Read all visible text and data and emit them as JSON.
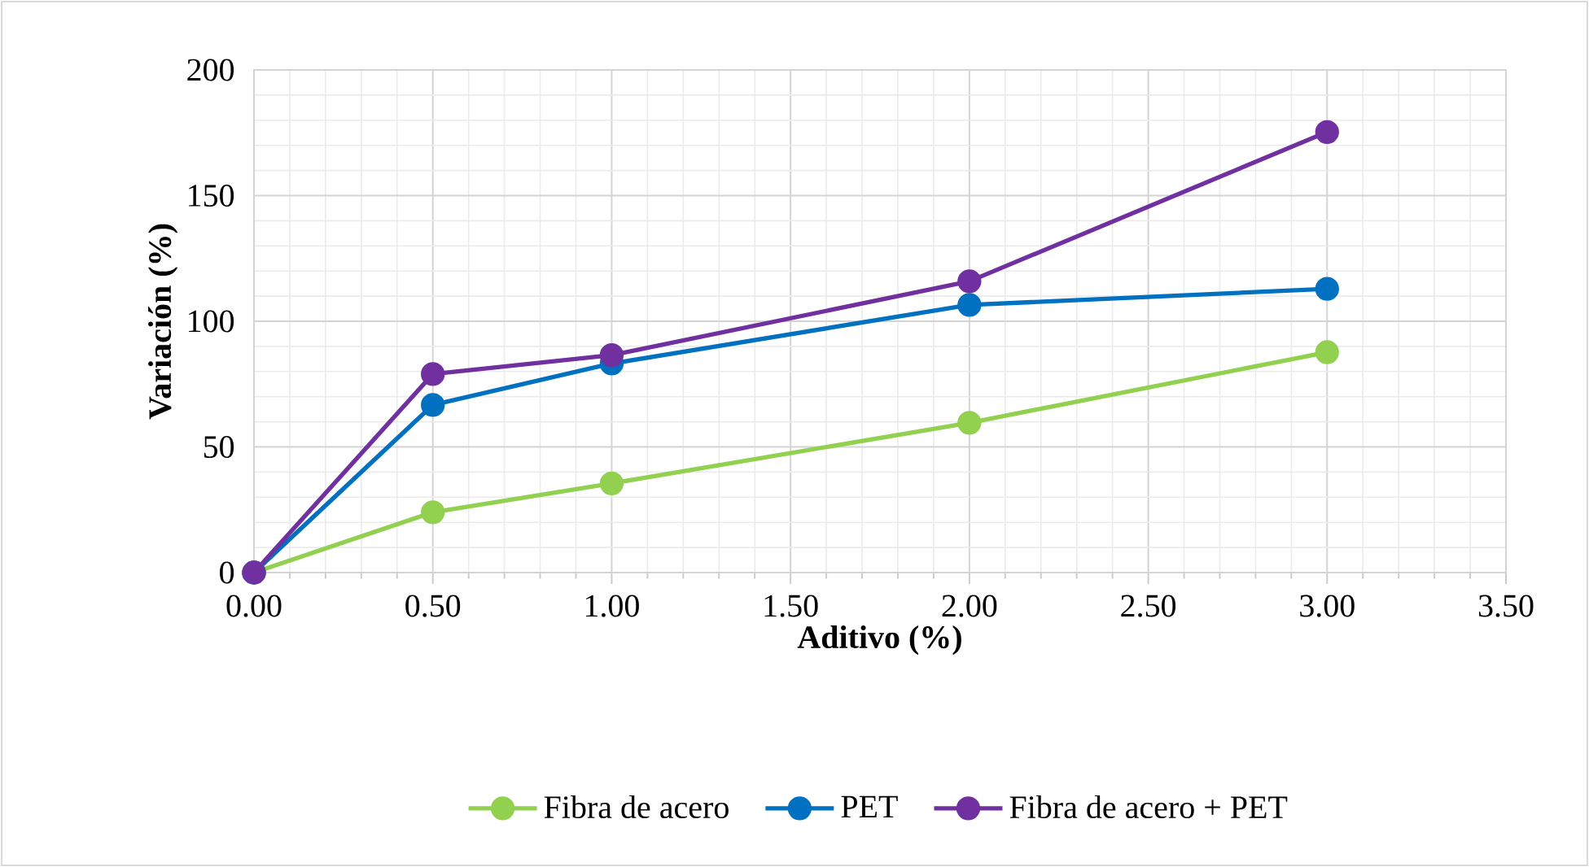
{
  "chart_data": {
    "type": "line",
    "xlabel": "Aditivo (%)",
    "ylabel": "Variación (%)",
    "x": [
      0,
      0.5,
      1,
      2,
      3
    ],
    "series": [
      {
        "name": "Fibra de acero",
        "color": "#92d050",
        "values": [
          0,
          24,
          35.5,
          59.6,
          87.7
        ]
      },
      {
        "name": "PET",
        "color": "#0070c0",
        "values": [
          0,
          66.7,
          83.2,
          106.5,
          112.9
        ]
      },
      {
        "name": "Fibra de acero + PET",
        "color": "#7030a0",
        "values": [
          0,
          79,
          86.5,
          115.9,
          175.3
        ]
      }
    ],
    "xlim": [
      0,
      3.5
    ],
    "ylim": [
      0,
      200
    ],
    "xticks": [
      {
        "value": 0,
        "label": "0.00"
      },
      {
        "value": 0.5,
        "label": "0.50"
      },
      {
        "value": 1,
        "label": "1.00"
      },
      {
        "value": 1.5,
        "label": "1.50"
      },
      {
        "value": 2,
        "label": "2.00"
      },
      {
        "value": 2.5,
        "label": "2.50"
      },
      {
        "value": 3,
        "label": "3.00"
      },
      {
        "value": 3.5,
        "label": "3.50"
      }
    ],
    "yticks": [
      0,
      50,
      100,
      150,
      200
    ],
    "grid": true,
    "legend": "bottom",
    "marker": "circle",
    "line_style": "solid"
  }
}
